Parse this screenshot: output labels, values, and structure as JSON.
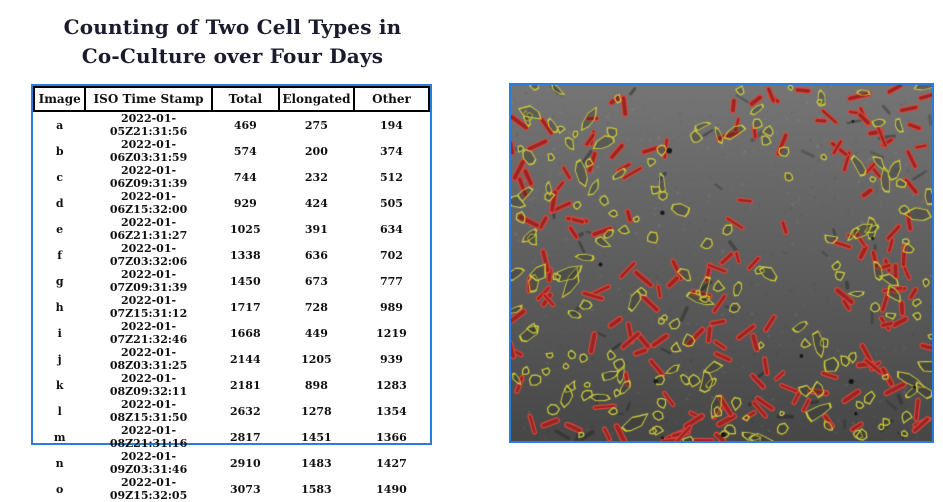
{
  "figure": {
    "title_line1": "Counting of Two Cell Types in",
    "title_line2": "Co-Culture over Four Days"
  },
  "chart_data": {
    "type": "table",
    "title": "Counting of Two Cell Types in Co-Culture over Four Days",
    "columns": [
      "Image",
      "ISO Time Stamp",
      "Total",
      "Elongated",
      "Other"
    ],
    "rows": [
      [
        "a",
        "2022-01-05Z21:31:56",
        469,
        275,
        194
      ],
      [
        "b",
        "2022-01-06Z03:31:59",
        574,
        200,
        374
      ],
      [
        "c",
        "2022-01-06Z09:31:39",
        744,
        232,
        512
      ],
      [
        "d",
        "2022-01-06Z15:32:00",
        929,
        424,
        505
      ],
      [
        "e",
        "2022-01-06Z21:31:27",
        1025,
        391,
        634
      ],
      [
        "f",
        "2022-01-07Z03:32:06",
        1338,
        636,
        702
      ],
      [
        "g",
        "2022-01-07Z09:31:39",
        1450,
        673,
        777
      ],
      [
        "h",
        "2022-01-07Z15:31:12",
        1717,
        728,
        989
      ],
      [
        "i",
        "2022-01-07Z21:32:46",
        1668,
        449,
        1219
      ],
      [
        "j",
        "2022-01-08Z03:31:25",
        2144,
        1205,
        939
      ],
      [
        "k",
        "2022-01-08Z09:32:11",
        2181,
        898,
        1283
      ],
      [
        "l",
        "2022-01-08Z15:31:50",
        2632,
        1278,
        1354
      ],
      [
        "m",
        "2022-01-08Z21:31:16",
        2817,
        1451,
        1366
      ],
      [
        "n",
        "2022-01-09Z03:31:46",
        2910,
        1483,
        1427
      ],
      [
        "o",
        "2022-01-09Z15:32:05",
        3073,
        1583,
        1490
      ]
    ]
  },
  "micrograph": {
    "kind": "co-culture micrograph with outlined cells",
    "background_top": "#757575",
    "background_bottom": "#474747",
    "elongated_fill": "#9c2422",
    "elongated_outline": "#d8493c",
    "other_outline": "#c9c840",
    "elongated_count": 170,
    "other_count": 190
  },
  "style": {
    "accent_border": "#2b7ce0",
    "title_color": "#1b1b2e"
  }
}
